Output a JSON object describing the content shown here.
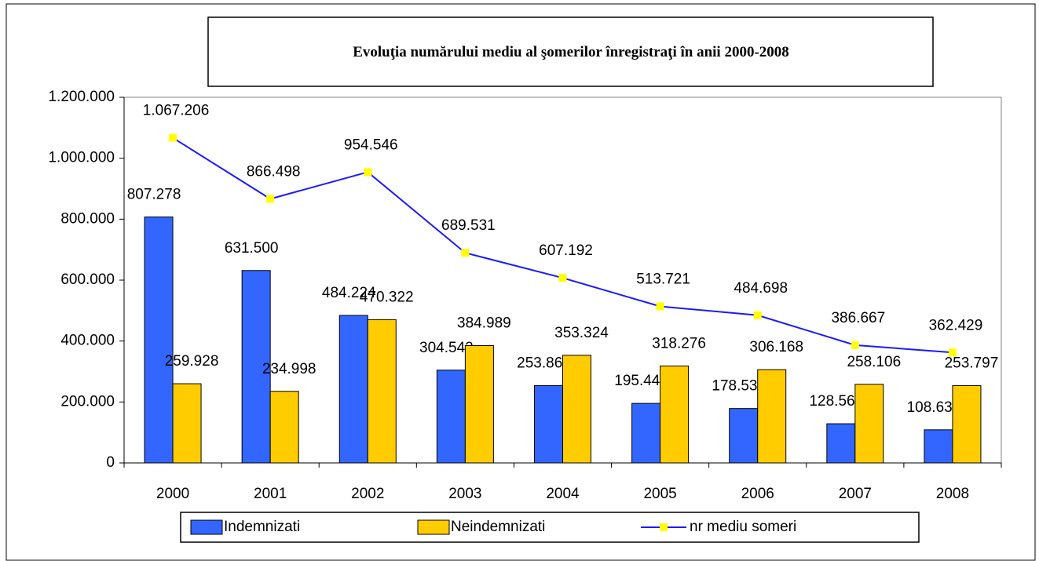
{
  "chart_data": {
    "type": "bar",
    "title": "Evoluţia numărului mediu al şomerilor înregistraţi în anii 2000-2008",
    "categories": [
      "2000",
      "2001",
      "2002",
      "2003",
      "2004",
      "2005",
      "2006",
      "2007",
      "2008"
    ],
    "series": [
      {
        "name": "Indemnizati",
        "color": "#3366ff",
        "type": "bar",
        "values": [
          807278,
          631500,
          484224,
          304542,
          253868,
          195445,
          178530,
          128561,
          108632
        ],
        "value_labels": [
          "807.278",
          "631.500",
          "484.224",
          "304.542",
          "253.868",
          "195.445",
          "178.530",
          "128.561",
          "108.632"
        ]
      },
      {
        "name": "Neindemnizati",
        "color": "#ffcc00",
        "type": "bar",
        "values": [
          259928,
          234998,
          470322,
          384989,
          353324,
          318276,
          306168,
          258106,
          253797
        ],
        "value_labels": [
          "259.928",
          "234.998",
          "470.322",
          "384.989",
          "353.324",
          "318.276",
          "306.168",
          "258.106",
          "253.797"
        ]
      },
      {
        "name": "nr mediu someri",
        "color": "#1a1aff",
        "marker_color": "#ffff00",
        "type": "line",
        "values": [
          1067206,
          866498,
          954546,
          689531,
          607192,
          513721,
          484698,
          386667,
          362429
        ],
        "value_labels": [
          "1.067.206",
          "866.498",
          "954.546",
          "689.531",
          "607.192",
          "513.721",
          "484.698",
          "386.667",
          "362.429"
        ]
      }
    ],
    "ylim": [
      0,
      1200000
    ],
    "yticks": [
      0,
      {
        "value": 200000,
        "label": "200.000"
      },
      {
        "value": 400000,
        "label": "400.000"
      },
      {
        "value": 600000,
        "label": "600.000"
      },
      {
        "value": 800000,
        "label": "800.000"
      },
      {
        "value": 1000000,
        "label": "1.000.000"
      },
      {
        "value": 1200000,
        "label": "1.200.000"
      }
    ],
    "grid": false,
    "legend": "bottom"
  }
}
